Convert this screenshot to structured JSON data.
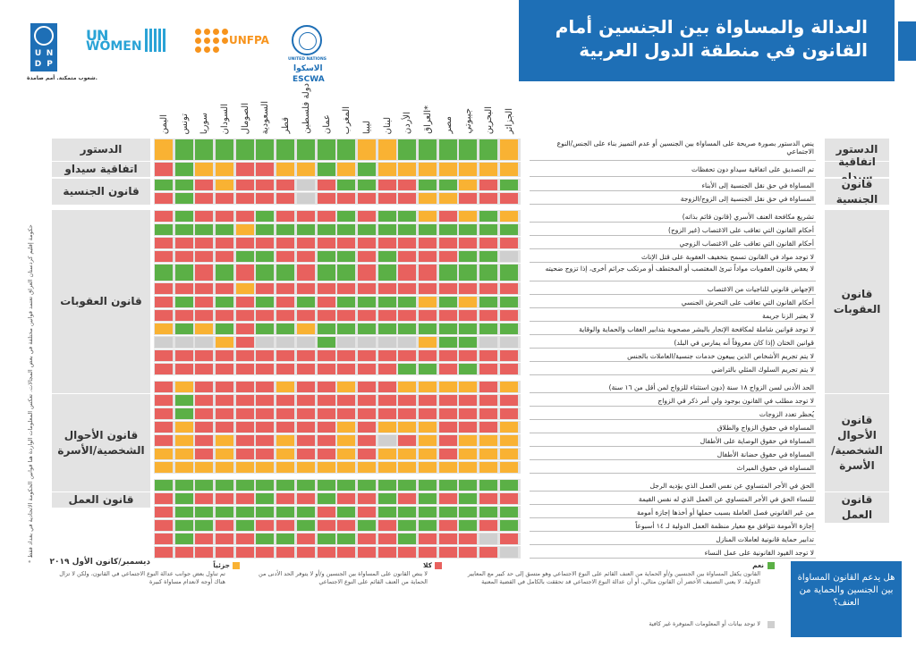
{
  "title": {
    "line1": "العدالة والمساواة بين الجنسين أمام",
    "line2": "القانون في منطقة الدول العربية"
  },
  "logos": {
    "undp_letters": [
      "U",
      "N",
      "D",
      "P"
    ],
    "undp_tagline": "شعوب متمكنة. أمم صامدة.",
    "unwomen_un": "UN",
    "unwomen_women": "WOMEN",
    "unfpa": "UNFPA",
    "escwa_un": "UNITED NATIONS",
    "escwa_arabic": "الاسكوا",
    "escwa": "ESCWA"
  },
  "colors": {
    "yes": "#5bb046",
    "partial": "#f9b233",
    "no": "#e8615e",
    "na": "#cfcfcf",
    "header_blue": "#1e6fb6"
  },
  "columns": [
    "الجزائر",
    "البحرين",
    "جيبوتي",
    "مصر",
    "العراق*",
    "الأردن",
    "لبنان",
    "ليبيا",
    "المغرب",
    "عمان",
    "دولة فلسطين",
    "قطر",
    "السعودية",
    "الصومال",
    "السودان",
    "سوريا",
    "تونس",
    "اليمن"
  ],
  "categories": [
    {
      "label": "الدستور",
      "rows": [
        0
      ]
    },
    {
      "label": "اتفاقية سيداو",
      "rows": [
        1
      ]
    },
    {
      "label": "قانون الجنسية",
      "rows": [
        2,
        3
      ]
    },
    {
      "label": "قانون العقوبات",
      "rows": [
        4,
        5,
        6,
        7,
        8,
        9,
        10,
        11,
        12,
        13,
        14,
        15,
        16
      ]
    },
    {
      "label": "قانون الأحوال الشخصية/الأسرة",
      "rows": [
        17,
        18,
        19,
        20,
        21,
        22,
        23
      ]
    },
    {
      "label": "قانون العمل",
      "rows": [
        24,
        25,
        26,
        27,
        28,
        29
      ]
    }
  ],
  "rows": [
    {
      "text": "ينص الدستور بصورة صريحة على المساواة بين الجنسين أو عدم التمييز بناء على الجنس/النوع الاجتماعي",
      "cells": "PGGGGGPPGGGGGGGGGP"
    },
    {
      "text": "تم التصديق على اتفاقية سيداو دون تحفظات",
      "cells": "PPPPPPPGPGPPRRPPGR"
    },
    {
      "text": "المساواة في حق نقل الجنسية إلى الأبناء",
      "cells": "GRPGGRRGGRNRRRPRGG"
    },
    {
      "text": "المساواة في حق نقل الجنسية إلى الزوج/الزوجة",
      "cells": "RRRPPRRRRRNRRRRRGR"
    },
    {
      "text": "تشريع مكافحة العنف الأسري (قانون قائم بذاته)",
      "cells": "PGPRPGGRGRRRGRRRGR"
    },
    {
      "text": "أحكام القانون التي تعاقب على الاغتصاب (غير الزوج)",
      "cells": "GGGGGGGGGGGGGPGGGG"
    },
    {
      "text": "أحكام القانون التي تعاقب على الاغتصاب الزوجي",
      "cells": "RRRRRRRRRRRRRRRRRR"
    },
    {
      "text": "لا توجد مواد في القانون تسمح بتخفيف العقوبة على قتل الإناث",
      "cells": "NGGRRRGRGGRRGGRRRR"
    },
    {
      "text": "لا يعفي قانون العقوبات مواداً تبرئ المغتصب أو المختطف أو مرتكب جرائم أخرى، إذا تزوج ضحيته",
      "cells": "GGGGRRGRGGRGGRGRGG"
    },
    {
      "text": "الإجهاض قانوني للناجيات من الاغتصاب",
      "cells": "RRRRRRRRRRRRRPRRRR"
    },
    {
      "text": "أحكام القانون التي تعاقب على التحرش الجنسي",
      "cells": "GGPGPGGGGRGRGRGRGR"
    },
    {
      "text": "لا يعتبر الزنا جريمة",
      "cells": "RRRRRRRRRRRRRRRRRR"
    },
    {
      "text": "لا توجد قوانين شاملة لمكافحة الإتجار بالبشر مصحوبة بتدابير العقاب والحماية والوقاية",
      "cells": "GGGGGGGGGGPGGRGPGP"
    },
    {
      "text": "قوانين الختان (إذا كان معروفاً أنه يمارس في البلد)",
      "cells": "NNGGPNNNNGNNNRPNNN"
    },
    {
      "text": "لا يتم تجريم الأشخاص الذين يبيعون خدمات جنسية/العاملات بالجنس",
      "cells": "RRRRRRRRRRRRRRRRRR"
    },
    {
      "text": "لا يتم تجريم السلوك المثلي بالتراضي",
      "cells": "RRGRGGRRRRRRRRRRRR"
    },
    {
      "text": "الحد الأدنى لسن الزواج ١٨ سنة (دون استثناء للزواج لمن أقل من ١٦ سنة)",
      "cells": "PRPPPPRRPRRPRRRRPR"
    },
    {
      "text": "لا توجد مطلب في القانون بوجود ولي أمر ذكر في الزواج",
      "cells": "RRRRRRRRRRRRRRRRGR"
    },
    {
      "text": "يُحظر تعدد الزوجات",
      "cells": "RRRRRRRRRRRRRRRRGR"
    },
    {
      "text": "المساواة في حقوق الزواج والطلاق",
      "cells": "PRRRPPPRPRRRRRRRPR"
    },
    {
      "text": "المساواة في حقوق الوصاية على الأطفال",
      "cells": "PPPRPRNRPRRPRRPRPR"
    },
    {
      "text": "المساواة في حقوق حضانة الأطفال",
      "cells": "PPPRPPPRPRRPRRPRPP"
    },
    {
      "text": "المساواة في حقوق الميراث",
      "cells": "PPPPPPPPPPPPPPPPPP"
    },
    {
      "text": "الحق في الأجر المتساوي عن نفس العمل الذي يؤديه الرجل",
      "cells": "GGGGGGGGGGGGGGGGGG"
    },
    {
      "text": "للنساء الحق في الأجر المتساوي عن العمل الذي له نفس القيمة",
      "cells": "RRGRGRGRRGRRGRRRGR"
    },
    {
      "text": "من غير القانوني فصل العاملة بسبب حملها أو أخذها إجازة أمومة",
      "cells": "GGGGGGGRGRGGGGGGGR"
    },
    {
      "text": "إجازة الأمومة تتوافق مع معيار منظمة العمل الدولية لـ ١٤ أسبوعاً",
      "cells": "GRGRGGRGRRGRRGRGGR"
    },
    {
      "text": "تدابير حماية قانونية لعاملات المنازل",
      "cells": "RNRRRGRRGGRGGRRRGR"
    },
    {
      "text": "لا توجد القيود القانونية على عمل النساء",
      "cells": "NRRRRRRRRRRRRRRRRR"
    }
  ],
  "date": "ديسمبر/كانون الأول ٢٠١٩",
  "footnote": "* حكومة إقليم كردستان العراق تعتمد قوانين مختلفة في بعض المجالات. تعكس المعلومات الواردة هنا قوانين الحكومة الاتحادية في بغداد فقط",
  "legend": {
    "question": "هل يدعم القانون المساواة بين الجنسين والحماية من العنف؟",
    "yes_label": "نعم",
    "yes_text": "القانون يكفل المساواة بين الجنسين و/أو الحماية من العنف القائم على النوع الاجتماعي وهو متسق إلى حد كبير مع المعايير الدولية. لا يعني التصنيف الأخضر أن القانون مثالي، أو أن عدالة النوع الاجتماعي قد تحققت بالكامل في القضية المعنية",
    "no_label": "كلا",
    "no_text": "لا ينص القانون على المساواة بين الجنسين و/أو لا يتوفر الحد الأدنى من الحماية من العنف القائم على النوع الاجتماعي",
    "partial_label": "جزئياً",
    "partial_text": "تم تناول بعض جوانب عدالة النوع الاجتماعي في القانون، ولكن لا تزال هناك أوجه لانعدام مساواة كبيرة",
    "na_text": "لا توجد بيانات أو المعلومات المتوفرة غير كافية"
  }
}
